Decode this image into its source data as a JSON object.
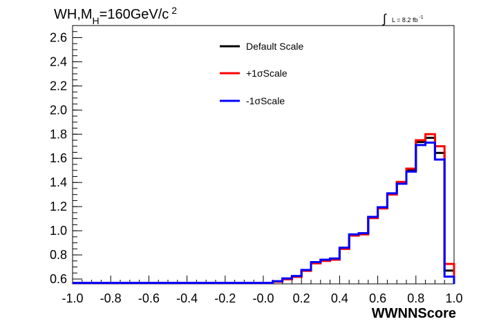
{
  "chart_data": {
    "type": "line",
    "title_main": "WH,M",
    "title_sub": "H",
    "title_rest": "=160GeV/c",
    "title_sup": "2",
    "lumi_integral": "∫",
    "lumi_text": "L = 8.2 fb",
    "lumi_sup": "-1",
    "xlabel": "WWNNScore",
    "ylabel": "",
    "xlim": [
      -1.0,
      1.0
    ],
    "ylim": [
      0.56,
      2.7
    ],
    "x_ticks": [
      "-1.0",
      "-0.8",
      "-0.6",
      "-0.4",
      "-0.2",
      "-0.0",
      "0.2",
      "0.4",
      "0.6",
      "0.8",
      "1.0"
    ],
    "y_ticks": [
      "0.6",
      "0.8",
      "1.0",
      "1.2",
      "1.4",
      "1.6",
      "1.8",
      "2.0",
      "2.2",
      "2.4",
      "2.6"
    ],
    "bin_edges": [
      -1.0,
      0.05,
      0.1,
      0.15,
      0.2,
      0.25,
      0.3,
      0.35,
      0.4,
      0.45,
      0.5,
      0.55,
      0.6,
      0.65,
      0.7,
      0.75,
      0.8,
      0.85,
      0.9,
      0.95,
      1.0
    ],
    "legend_position": "top-center",
    "series": [
      {
        "name": "Default Scale",
        "color": "#000000",
        "values": [
          0.568,
          0.58,
          0.6,
          0.62,
          0.67,
          0.735,
          0.755,
          0.765,
          0.855,
          0.965,
          0.975,
          1.11,
          1.19,
          1.305,
          1.395,
          1.505,
          1.735,
          1.77,
          1.645,
          0.67
        ]
      },
      {
        "name": "+1σScale",
        "color": "#ff0000",
        "values": [
          0.568,
          0.578,
          0.598,
          0.618,
          0.668,
          0.73,
          0.75,
          0.76,
          0.85,
          0.96,
          0.97,
          1.105,
          1.185,
          1.3,
          1.405,
          1.515,
          1.75,
          1.8,
          1.7,
          0.725
        ]
      },
      {
        "name": "-1σScale",
        "color": "#0000ff",
        "values": [
          0.568,
          0.582,
          0.605,
          0.625,
          0.675,
          0.74,
          0.76,
          0.77,
          0.86,
          0.97,
          0.98,
          1.115,
          1.195,
          1.31,
          1.39,
          1.49,
          1.71,
          1.73,
          1.59,
          0.62
        ]
      }
    ]
  }
}
